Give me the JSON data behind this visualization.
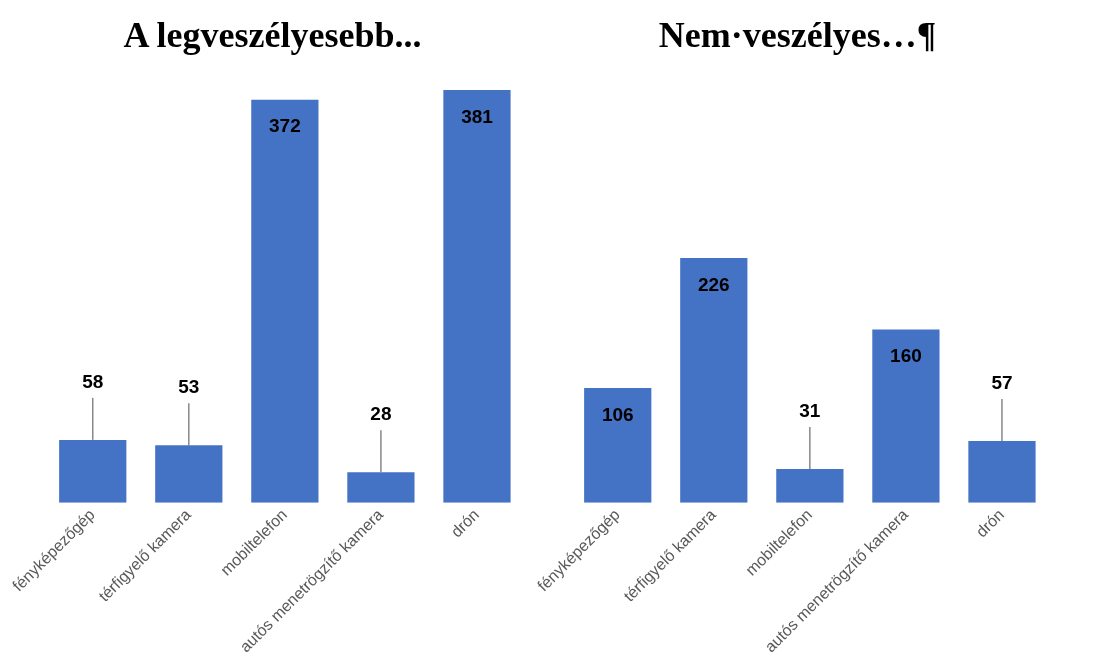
{
  "chart_data": [
    {
      "type": "bar",
      "title": "A legveszélyesebb...",
      "categories": [
        "fényképezőgép",
        "térfigyelő kamera",
        "mobiltelefon",
        "autós menetrögzítő kamera",
        "drón"
      ],
      "values": [
        58,
        53,
        372,
        28,
        381
      ],
      "color": "#4472c4",
      "data_labels": true,
      "grid": false,
      "legend": false,
      "tick_labels": "x"
    },
    {
      "type": "bar",
      "title": "Nem·veszélyes…¶",
      "categories": [
        "fényképezőgép",
        "térfigyelő kamera",
        "mobiltelefon",
        "autós menetrögzítő kamera",
        "drón"
      ],
      "values": [
        106,
        226,
        31,
        160,
        57
      ],
      "color": "#4472c4",
      "data_labels": true,
      "grid": false,
      "legend": false,
      "tick_labels": "x"
    }
  ]
}
